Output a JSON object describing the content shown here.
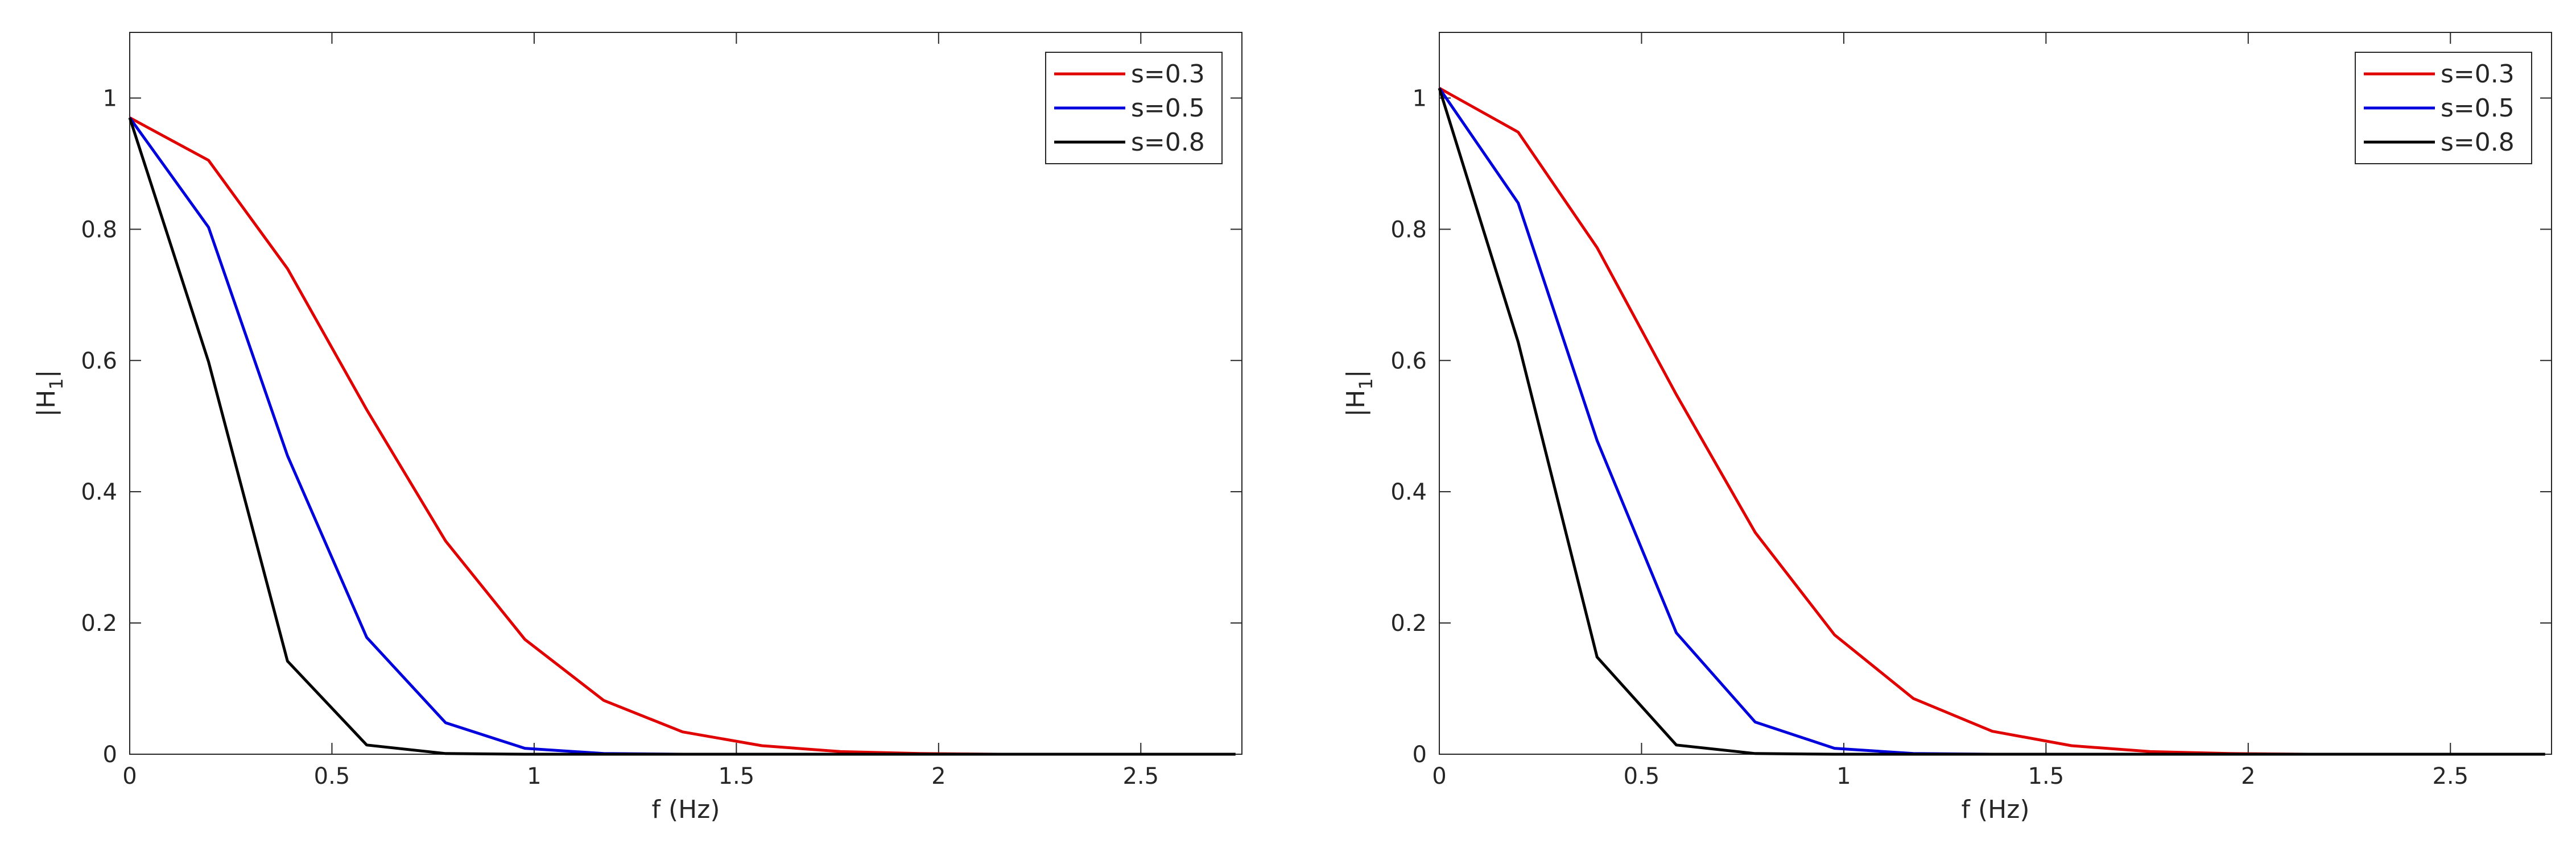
{
  "chart_data": [
    {
      "type": "line",
      "xlabel": "f (Hz)",
      "ylabel": "|H",
      "ylabel_subscript": "1",
      "ylabel_suffix": "|",
      "xlim": [
        0,
        2.75
      ],
      "ylim": [
        0,
        1.1
      ],
      "xticks": [
        0,
        0.5,
        1,
        1.5,
        2,
        2.5
      ],
      "xtick_labels": [
        "0",
        "0.5",
        "1",
        "1.5",
        "2",
        "2.5"
      ],
      "yticks": [
        0,
        0.2,
        0.4,
        0.6,
        0.8,
        1
      ],
      "ytick_labels": [
        "0",
        "0.2",
        "0.4",
        "0.6",
        "0.8",
        "1"
      ],
      "grid": false,
      "legend_position": "top-right",
      "x": [
        0,
        0.195,
        0.39,
        0.586,
        0.781,
        0.977,
        1.172,
        1.367,
        1.563,
        1.758,
        1.953,
        2.148,
        2.344,
        2.539,
        2.734
      ],
      "series": [
        {
          "name": "s=0.3",
          "color": "#e00000",
          "values": [
            0.97,
            0.905,
            0.74,
            0.525,
            0.325,
            0.175,
            0.082,
            0.034,
            0.013,
            0.004,
            0.001,
            0,
            0,
            0,
            0
          ]
        },
        {
          "name": "s=0.5",
          "color": "#0000dd",
          "values": [
            0.97,
            0.803,
            0.455,
            0.178,
            0.048,
            0.009,
            0.001,
            0,
            0,
            0,
            0,
            0,
            0,
            0,
            0
          ]
        },
        {
          "name": "s=0.8",
          "color": "#000000",
          "values": [
            0.97,
            0.598,
            0.142,
            0.014,
            0.001,
            0,
            0,
            0,
            0,
            0,
            0,
            0,
            0,
            0,
            0
          ]
        }
      ]
    },
    {
      "type": "line",
      "xlabel": "f (Hz)",
      "ylabel": "|H",
      "ylabel_subscript": "1",
      "ylabel_suffix": "|",
      "xlim": [
        0,
        2.75
      ],
      "ylim": [
        0,
        1.1
      ],
      "xticks": [
        0,
        0.5,
        1,
        1.5,
        2,
        2.5
      ],
      "xtick_labels": [
        "0",
        "0.5",
        "1",
        "1.5",
        "2",
        "2.5"
      ],
      "yticks": [
        0,
        0.2,
        0.4,
        0.6,
        0.8,
        1
      ],
      "ytick_labels": [
        "0",
        "0.2",
        "0.4",
        "0.6",
        "0.8",
        "1"
      ],
      "grid": false,
      "legend_position": "top-right",
      "x": [
        0,
        0.195,
        0.39,
        0.586,
        0.781,
        0.977,
        1.172,
        1.367,
        1.563,
        1.758,
        1.953,
        2.148,
        2.344,
        2.539,
        2.734
      ],
      "series": [
        {
          "name": "s=0.3",
          "color": "#e00000",
          "values": [
            1.015,
            0.948,
            0.772,
            0.548,
            0.338,
            0.182,
            0.085,
            0.035,
            0.013,
            0.004,
            0.001,
            0,
            0,
            0,
            0
          ]
        },
        {
          "name": "s=0.5",
          "color": "#0000dd",
          "values": [
            1.015,
            0.84,
            0.478,
            0.185,
            0.049,
            0.009,
            0.001,
            0,
            0,
            0,
            0,
            0,
            0,
            0,
            0
          ]
        },
        {
          "name": "s=0.8",
          "color": "#000000",
          "values": [
            1.015,
            0.628,
            0.148,
            0.014,
            0.001,
            0,
            0,
            0,
            0,
            0,
            0,
            0,
            0,
            0,
            0
          ]
        }
      ]
    }
  ]
}
